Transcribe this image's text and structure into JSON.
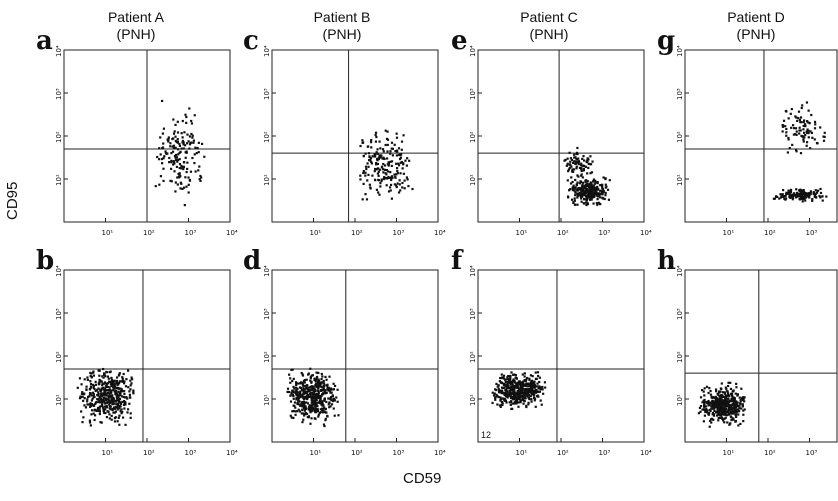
{
  "figure": {
    "xlabel": "CD59",
    "ylabel": "CD95",
    "tick_labels": [
      "10¹",
      "10²",
      "10³",
      "10⁴"
    ],
    "columns": [
      {
        "title": "Patient A",
        "subtitle": "(PNH)"
      },
      {
        "title": "Patient B",
        "subtitle": "(PNH)"
      },
      {
        "title": "Patient C",
        "subtitle": "(PNH)"
      },
      {
        "title": "Patient D",
        "subtitle": "(PNH)"
      }
    ],
    "panel_f_annotation": "12"
  },
  "chart_data": [
    {
      "panel": "a",
      "type": "scatter",
      "xscale": "log",
      "yscale": "log",
      "xlim": [
        1,
        10000
      ],
      "ylim": [
        1,
        10000
      ],
      "quadrant_gate": {
        "x": 100,
        "y": 50
      },
      "clusters": [
        {
          "x_range": [
            120,
            2500
          ],
          "y_range": [
            2,
            800
          ],
          "count": 170
        }
      ]
    },
    {
      "panel": "b",
      "type": "scatter",
      "xscale": "log",
      "yscale": "log",
      "xlim": [
        1,
        10000
      ],
      "ylim": [
        1,
        10000
      ],
      "quadrant_gate": {
        "x": 80,
        "y": 50
      },
      "clusters": [
        {
          "x_range": [
            2,
            50
          ],
          "y_range": [
            2,
            80
          ],
          "count": 420
        }
      ]
    },
    {
      "panel": "c",
      "type": "scatter",
      "xscale": "log",
      "yscale": "log",
      "xlim": [
        1,
        10000
      ],
      "ylim": [
        1,
        10000
      ],
      "quadrant_gate": {
        "x": 70,
        "y": 40
      },
      "clusters": [
        {
          "x_range": [
            100,
            2500
          ],
          "y_range": [
            2,
            250
          ],
          "count": 200
        }
      ]
    },
    {
      "panel": "d",
      "type": "scatter",
      "xscale": "log",
      "yscale": "log",
      "xlim": [
        1,
        10000
      ],
      "ylim": [
        1,
        10000
      ],
      "quadrant_gate": {
        "x": 60,
        "y": 50
      },
      "clusters": [
        {
          "x_range": [
            2,
            40
          ],
          "y_range": [
            2,
            70
          ],
          "count": 450
        }
      ]
    },
    {
      "panel": "e",
      "type": "scatter",
      "xscale": "log",
      "yscale": "log",
      "xlim": [
        1,
        10000
      ],
      "ylim": [
        1,
        10000
      ],
      "quadrant_gate": {
        "x": 90,
        "y": 40
      },
      "clusters": [
        {
          "x_range": [
            120,
            1500
          ],
          "y_range": [
            2,
            15
          ],
          "count": 280
        },
        {
          "x_range": [
            100,
            600
          ],
          "y_range": [
            10,
            60
          ],
          "count": 80
        }
      ]
    },
    {
      "panel": "f",
      "type": "scatter",
      "xscale": "log",
      "yscale": "log",
      "xlim": [
        1,
        10000
      ],
      "ylim": [
        1,
        10000
      ],
      "quadrant_gate": {
        "x": 80,
        "y": 50
      },
      "clusters": [
        {
          "x_range": [
            2,
            40
          ],
          "y_range": [
            5,
            60
          ],
          "count": 450
        }
      ]
    },
    {
      "panel": "g",
      "type": "scatter",
      "xscale": "log",
      "yscale": "log",
      "xlim": [
        1,
        10000
      ],
      "ylim": [
        1,
        10000
      ],
      "quadrant_gate": {
        "x": 80,
        "y": 50
      },
      "clusters": [
        {
          "x_range": [
            120,
            3000
          ],
          "y_range": [
            3,
            7
          ],
          "count": 160
        },
        {
          "x_range": [
            150,
            2500
          ],
          "y_range": [
            20,
            1200
          ],
          "count": 90
        }
      ]
    },
    {
      "panel": "h",
      "type": "scatter",
      "xscale": "log",
      "yscale": "log",
      "xlim": [
        1,
        10000
      ],
      "ylim": [
        1,
        10000
      ],
      "quadrant_gate": {
        "x": 60,
        "y": 40
      },
      "clusters": [
        {
          "x_range": [
            2,
            30
          ],
          "y_range": [
            2,
            30
          ],
          "count": 420
        }
      ]
    }
  ]
}
